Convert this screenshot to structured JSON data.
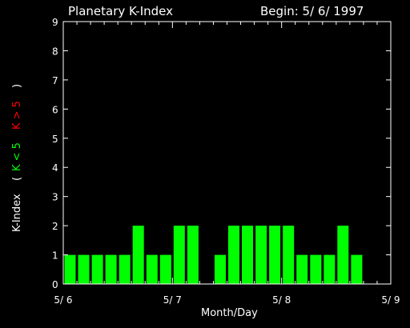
{
  "chart_data": {
    "type": "bar",
    "title": "Planetary K-Index",
    "begin_label": "Begin: 5/ 6/ 1997",
    "xlabel": "Month/Day",
    "ylabel_prefix": "K-Index",
    "ylabel_green": "K < 5",
    "ylabel_red": "K > 5",
    "ylim": [
      0,
      9
    ],
    "x_ticks": [
      "5/ 6",
      "5/ 7",
      "5/ 8",
      "5/ 9"
    ],
    "y_ticks": [
      "0",
      "1",
      "2",
      "3",
      "4",
      "5",
      "6",
      "7",
      "8",
      "9"
    ],
    "bar_interval_hours": 3,
    "values": [
      1,
      1,
      1,
      1,
      1,
      2,
      1,
      1,
      2,
      2,
      0,
      1,
      2,
      2,
      2,
      2,
      2,
      1,
      1,
      1,
      2,
      1,
      0,
      0
    ],
    "colors": {
      "low": "#00ff00",
      "high": "#ff0000",
      "axes": "#ffffff",
      "background": "#000000"
    },
    "grid": false
  }
}
